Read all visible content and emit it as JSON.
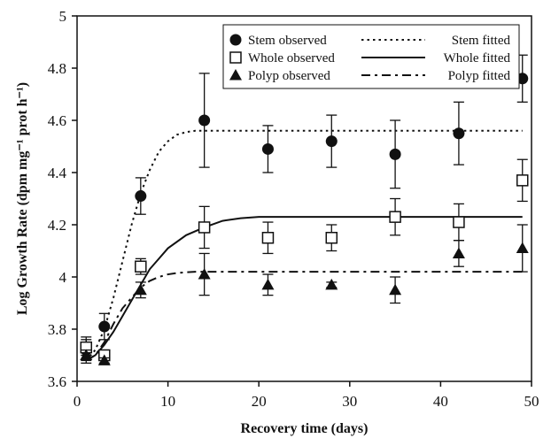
{
  "chart_data": {
    "type": "scatter",
    "xlabel": "Recovery time (days)",
    "ylabel": "Log Growth Rate  (dpm mg⁻¹ prot h⁻¹)",
    "xlim": [
      0,
      50
    ],
    "ylim": [
      3.6,
      5
    ],
    "x_ticks": [
      "0",
      "10",
      "20",
      "30",
      "40",
      "50"
    ],
    "y_ticks": [
      "3.6",
      "3.8",
      "4",
      "4.2",
      "4.4",
      "4.6",
      "4.8",
      "5"
    ],
    "legend_position": "top-right",
    "grid": false,
    "x": [
      1,
      3,
      7,
      14,
      21,
      28,
      35,
      42,
      49
    ],
    "series": [
      {
        "name": "Stem observed",
        "kind": "observed",
        "marker": "filled-circle",
        "values": [
          3.72,
          3.81,
          4.31,
          4.6,
          4.49,
          4.52,
          4.47,
          4.55,
          4.76
        ],
        "errors": [
          0.05,
          0.05,
          0.07,
          0.18,
          0.09,
          0.1,
          0.13,
          0.12,
          0.09
        ]
      },
      {
        "name": "Whole observed",
        "kind": "observed",
        "marker": "open-square",
        "values": [
          3.73,
          3.7,
          4.04,
          4.19,
          4.15,
          4.15,
          4.23,
          4.21,
          4.37
        ],
        "errors": [
          0.03,
          0.02,
          0.03,
          0.08,
          0.06,
          0.05,
          0.07,
          0.07,
          0.08
        ]
      },
      {
        "name": "Polyp observed",
        "kind": "observed",
        "marker": "filled-triangle",
        "values": [
          3.7,
          3.68,
          3.95,
          4.01,
          3.97,
          3.97,
          3.95,
          4.09,
          4.11
        ],
        "errors": [
          0.02,
          0.01,
          0.03,
          0.08,
          0.04,
          0.01,
          0.05,
          0.05,
          0.09
        ]
      },
      {
        "name": "Stem fitted",
        "kind": "fitted",
        "dash": "dotted",
        "x": [
          1,
          2,
          3,
          4,
          5,
          6,
          7,
          8,
          9,
          10,
          11,
          12,
          13,
          14,
          49
        ],
        "values": [
          3.68,
          3.72,
          3.8,
          3.92,
          4.06,
          4.2,
          4.32,
          4.41,
          4.48,
          4.52,
          4.545,
          4.555,
          4.56,
          4.56,
          4.56
        ]
      },
      {
        "name": "Whole fitted",
        "kind": "fitted",
        "dash": "solid",
        "x": [
          1,
          2,
          3,
          4,
          5,
          6,
          7,
          8,
          9,
          10,
          12,
          14,
          16,
          18,
          20,
          49
        ],
        "values": [
          3.68,
          3.7,
          3.74,
          3.79,
          3.85,
          3.91,
          3.97,
          4.03,
          4.07,
          4.11,
          4.16,
          4.19,
          4.215,
          4.225,
          4.23,
          4.23
        ]
      },
      {
        "name": "Polyp fitted",
        "kind": "fitted",
        "dash": "dash-dot",
        "x": [
          1,
          2,
          3,
          4,
          5,
          6,
          7,
          8,
          9,
          10,
          11,
          12,
          13,
          14,
          49
        ],
        "values": [
          3.68,
          3.7,
          3.75,
          3.82,
          3.88,
          3.92,
          3.96,
          3.985,
          4.0,
          4.01,
          4.015,
          4.018,
          4.02,
          4.02,
          4.02
        ]
      }
    ]
  }
}
